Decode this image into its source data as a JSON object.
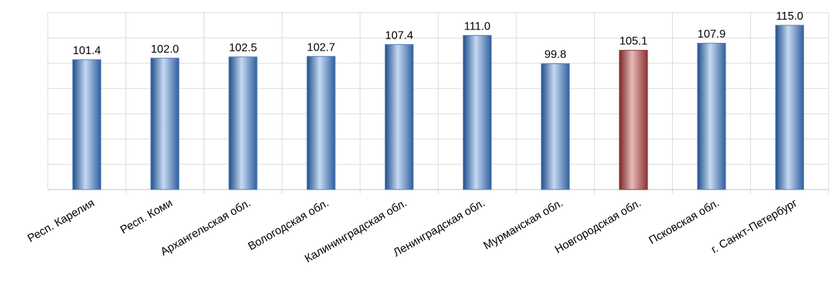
{
  "chart_data": {
    "type": "bar",
    "categories": [
      "Респ. Карелия",
      "Респ. Коми",
      "Архангельская обл.",
      "Вологодская обл.",
      "Калининградская обл.",
      "Ленинградская обл.",
      "Мурманская обл.",
      "Новгородская обл.",
      "Псковская обл.",
      "г. Санкт-Петербург"
    ],
    "values": [
      101.4,
      102.0,
      102.5,
      102.7,
      107.4,
      111.0,
      99.8,
      105.1,
      107.9,
      115.0
    ],
    "value_labels": [
      "101.4",
      "102.0",
      "102.5",
      "102.7",
      "107.4",
      "111.0",
      "99.8",
      "105.1",
      "107.9",
      "115.0"
    ],
    "highlight_index": 7,
    "ylim": [
      50,
      120
    ],
    "grid": true,
    "colors": {
      "bar": "#4f81bd",
      "bar_light": "#c6d9f1",
      "highlight": "#953735",
      "highlight_light": "#e6b9b8",
      "grid": "#d9d9d9",
      "axis": "#bfbfbf"
    }
  }
}
